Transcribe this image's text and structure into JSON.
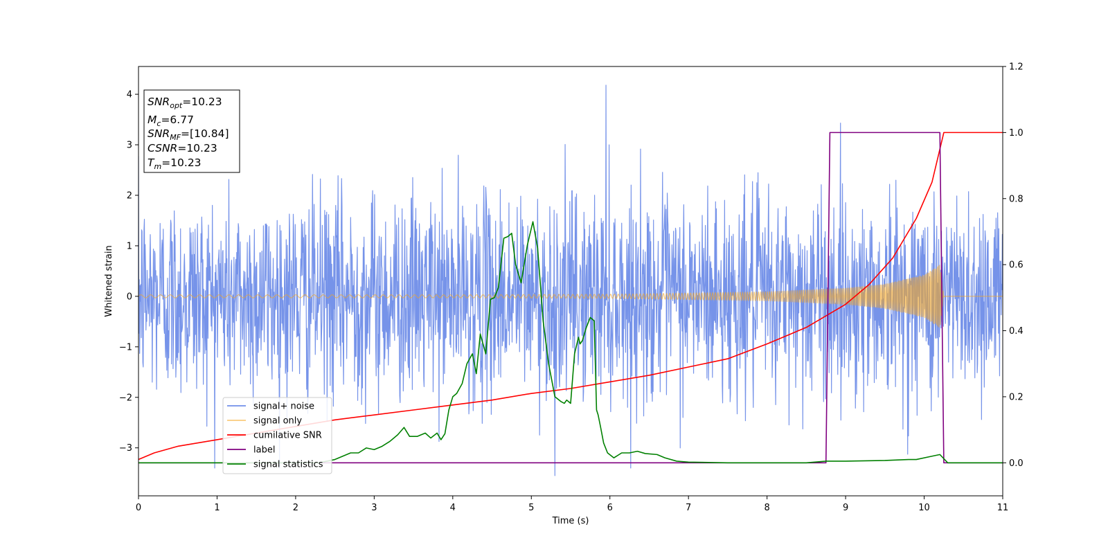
{
  "chart_data": {
    "type": "line",
    "xlabel": "Time (s)",
    "ylabel": "Whitened strain",
    "xlim": [
      0,
      11
    ],
    "ylim": [
      -3.95,
      4.55
    ],
    "y2lim": [
      -0.1,
      1.2
    ],
    "x_ticks": [
      0,
      1,
      2,
      3,
      4,
      5,
      6,
      7,
      8,
      9,
      10,
      11
    ],
    "y_ticks": [
      -3,
      -2,
      -1,
      0,
      1,
      2,
      3,
      4
    ],
    "y2_ticks": [
      0.0,
      0.2,
      0.4,
      0.6,
      0.8,
      1.0,
      1.2
    ],
    "grid": false,
    "legend_position": "lower-left",
    "info_box": [
      {
        "base": "SNR",
        "sub": "opt",
        "value": "=10.23"
      },
      {
        "base": "M",
        "sub": "c",
        "value": "=6.77"
      },
      {
        "base": "SNR",
        "sub": "MF",
        "value": "=[10.84]"
      },
      {
        "base": "CSNR",
        "sub": "",
        "value": "=10.23"
      },
      {
        "base": "T",
        "sub": "m",
        "value": "=10.23"
      }
    ],
    "series": [
      {
        "name": "signal+ noise",
        "color": "#4169e1",
        "axis": "left",
        "description_type": "noise",
        "noise_std": 1.0,
        "noise_peak": 4.18,
        "noise_min": -3.55
      },
      {
        "name": "signal only",
        "color": "#f5a623",
        "axis": "left",
        "description_type": "chirp",
        "envelope": {
          "x": [
            0,
            4,
            6,
            8,
            9,
            9.5,
            10,
            10.2,
            10.25,
            11
          ],
          "amp": [
            0.03,
            0.03,
            0.04,
            0.09,
            0.16,
            0.24,
            0.42,
            0.62,
            0.0,
            0.0
          ]
        }
      },
      {
        "name": "cumilative SNR",
        "color": "#ff0000",
        "axis": "right",
        "x": [
          0,
          0.2,
          0.5,
          1,
          1.5,
          2,
          2.5,
          3,
          3.5,
          4,
          4.5,
          5,
          5.5,
          6,
          6.5,
          7,
          7.5,
          8,
          8.5,
          9,
          9.3,
          9.6,
          9.9,
          10.1,
          10.25,
          11
        ],
        "values": [
          0.01,
          0.03,
          0.05,
          0.07,
          0.09,
          0.11,
          0.13,
          0.145,
          0.16,
          0.175,
          0.19,
          0.21,
          0.225,
          0.245,
          0.265,
          0.29,
          0.315,
          0.36,
          0.41,
          0.48,
          0.54,
          0.62,
          0.74,
          0.85,
          1.0,
          1.0
        ]
      },
      {
        "name": "label",
        "color": "#800080",
        "axis": "right",
        "x": [
          0,
          8.75,
          8.8,
          10.2,
          10.25,
          11
        ],
        "values": [
          0.0,
          0.0,
          1.0,
          1.0,
          0.0,
          0.0
        ]
      },
      {
        "name": "signal statistics",
        "color": "#008000",
        "axis": "right",
        "x": [
          0,
          0.5,
          1,
          1.5,
          2,
          2.3,
          2.5,
          2.6,
          2.7,
          2.8,
          2.9,
          3.0,
          3.1,
          3.2,
          3.3,
          3.38,
          3.45,
          3.55,
          3.65,
          3.72,
          3.8,
          3.85,
          3.9,
          3.95,
          4.0,
          4.05,
          4.12,
          4.18,
          4.25,
          4.3,
          4.35,
          4.42,
          4.48,
          4.53,
          4.58,
          4.65,
          4.7,
          4.75,
          4.8,
          4.87,
          4.95,
          5.02,
          5.08,
          5.15,
          5.22,
          5.3,
          5.38,
          5.42,
          5.45,
          5.5,
          5.55,
          5.6,
          5.62,
          5.65,
          5.7,
          5.75,
          5.8,
          5.83,
          5.85,
          5.88,
          5.92,
          5.97,
          6.05,
          6.15,
          6.25,
          6.35,
          6.45,
          6.6,
          6.7,
          6.85,
          7.0,
          7.5,
          8.0,
          8.5,
          8.75,
          9.0,
          9.5,
          9.8,
          9.9,
          10.1,
          10.2,
          10.3,
          11
        ],
        "values": [
          0.0,
          0.0,
          0.0,
          0.0,
          0.0,
          0.0,
          0.01,
          0.02,
          0.03,
          0.03,
          0.045,
          0.04,
          0.05,
          0.065,
          0.085,
          0.107,
          0.08,
          0.08,
          0.09,
          0.075,
          0.09,
          0.07,
          0.088,
          0.16,
          0.2,
          0.21,
          0.24,
          0.3,
          0.33,
          0.27,
          0.39,
          0.33,
          0.495,
          0.5,
          0.53,
          0.68,
          0.685,
          0.695,
          0.6,
          0.545,
          0.66,
          0.73,
          0.65,
          0.43,
          0.3,
          0.2,
          0.185,
          0.18,
          0.19,
          0.18,
          0.33,
          0.38,
          0.36,
          0.37,
          0.41,
          0.44,
          0.43,
          0.16,
          0.145,
          0.11,
          0.06,
          0.03,
          0.015,
          0.03,
          0.03,
          0.035,
          0.028,
          0.025,
          0.015,
          0.005,
          0.002,
          0.0,
          0.0,
          0.0,
          0.005,
          0.005,
          0.007,
          0.01,
          0.01,
          0.02,
          0.025,
          0.0,
          0.0
        ]
      }
    ]
  }
}
